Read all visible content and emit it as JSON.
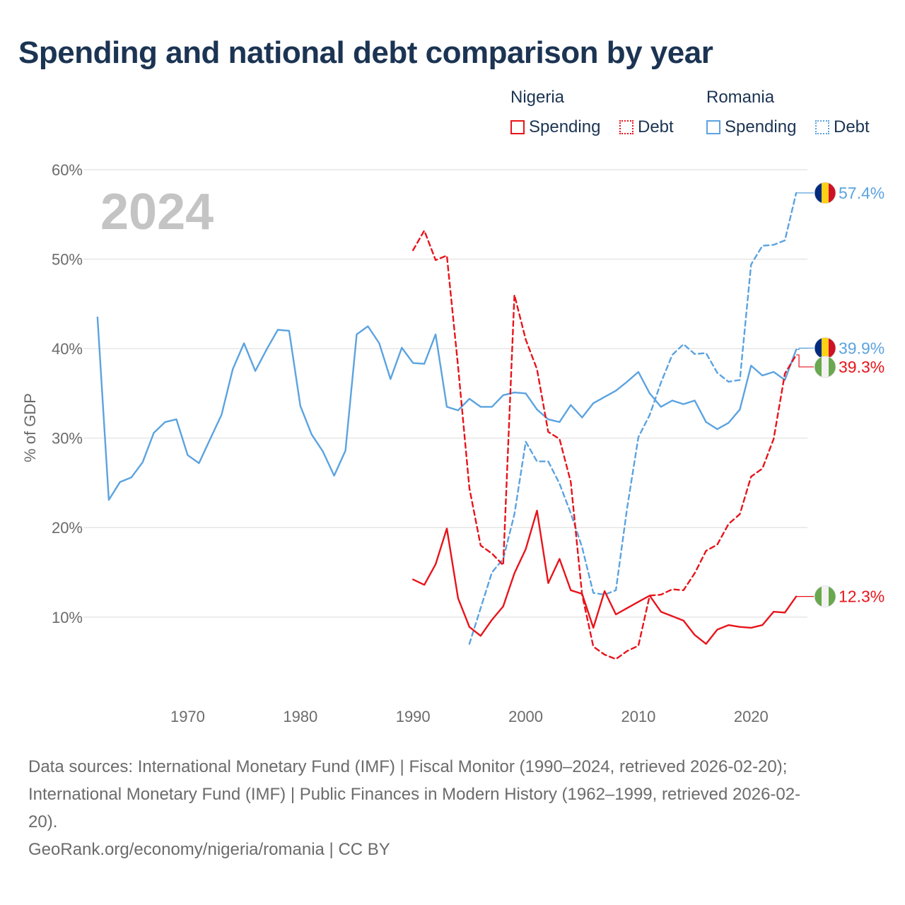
{
  "title": "Spending and national debt comparison by year",
  "legend": {
    "groups": [
      {
        "name": "Nigeria",
        "items": [
          {
            "label": "Spending",
            "style": "solid"
          },
          {
            "label": "Debt",
            "style": "dotted"
          }
        ],
        "color": "#e8141b"
      },
      {
        "name": "Romania",
        "items": [
          {
            "label": "Spending",
            "style": "solid"
          },
          {
            "label": "Debt",
            "style": "dotted"
          }
        ],
        "color": "#5ba3e0"
      }
    ]
  },
  "year_watermark": "2024",
  "colors": {
    "nigeria": "#e8141b",
    "romania": "#5ba3e0",
    "grid": "#e6e6e6",
    "axis_text": "#6b6b6b",
    "title": "#1c3453"
  },
  "chart_data": {
    "type": "line",
    "title": "Spending and national debt comparison by year",
    "xlabel": "",
    "ylabel": "% of GDP",
    "xlim": [
      1961,
      2025
    ],
    "ylim": [
      2,
      60
    ],
    "x_ticks": [
      1970,
      1980,
      1990,
      2000,
      2010,
      2020
    ],
    "y_ticks": [
      10,
      20,
      30,
      40,
      50,
      60
    ],
    "y_tick_labels": [
      "10%",
      "20%",
      "30%",
      "40%",
      "50%",
      "60%"
    ],
    "series": [
      {
        "name": "Romania Spending",
        "country": "romania",
        "dash": "solid",
        "x": [
          1962,
          1963,
          1964,
          1965,
          1966,
          1967,
          1968,
          1969,
          1970,
          1971,
          1972,
          1973,
          1974,
          1975,
          1976,
          1977,
          1978,
          1979,
          1980,
          1981,
          1982,
          1983,
          1984,
          1985,
          1986,
          1987,
          1988,
          1989,
          1990,
          1991,
          1992,
          1993,
          1994,
          1995,
          1996,
          1997,
          1998,
          1999,
          2000,
          2001,
          2002,
          2003,
          2004,
          2005,
          2006,
          2007,
          2008,
          2009,
          2010,
          2011,
          2012,
          2013,
          2014,
          2015,
          2016,
          2017,
          2018,
          2019,
          2020,
          2021,
          2022,
          2023,
          2024
        ],
        "values": [
          43.5,
          23.1,
          25.1,
          25.6,
          27.3,
          30.6,
          31.8,
          32.1,
          28.1,
          27.2,
          29.9,
          32.6,
          37.7,
          40.6,
          37.5,
          39.9,
          42.1,
          42.0,
          33.6,
          30.4,
          28.5,
          25.8,
          28.6,
          41.6,
          42.5,
          40.6,
          36.6,
          40.1,
          38.4,
          38.3,
          41.6,
          33.5,
          33.1,
          34.4,
          33.5,
          33.5,
          34.8,
          35.1,
          35.0,
          33.2,
          32.1,
          31.8,
          33.7,
          32.3,
          33.9,
          34.6,
          35.3,
          36.3,
          37.4,
          35.0,
          33.5,
          34.2,
          33.8,
          34.2,
          31.8,
          31.0,
          31.7,
          33.2,
          38.1,
          37.0,
          37.4,
          36.5,
          39.9
        ]
      },
      {
        "name": "Romania Debt",
        "country": "romania",
        "dash": "dashed",
        "x": [
          1995,
          1996,
          1997,
          1998,
          1999,
          2000,
          2001,
          2002,
          2003,
          2004,
          2005,
          2006,
          2007,
          2008,
          2009,
          2010,
          2011,
          2012,
          2013,
          2014,
          2015,
          2016,
          2017,
          2018,
          2019,
          2020,
          2021,
          2022,
          2023,
          2024
        ],
        "values": [
          7.0,
          11.0,
          15.0,
          16.5,
          21.5,
          29.6,
          27.4,
          27.4,
          24.9,
          21.6,
          17.8,
          12.7,
          12.5,
          13.0,
          22.2,
          30.1,
          32.6,
          36.2,
          39.3,
          40.5,
          39.4,
          39.5,
          37.3,
          36.3,
          36.5,
          49.4,
          51.5,
          51.6,
          52.1,
          57.4
        ]
      },
      {
        "name": "Nigeria Spending",
        "country": "nigeria",
        "dash": "solid",
        "x": [
          1990,
          1991,
          1992,
          1993,
          1994,
          1995,
          1996,
          1997,
          1998,
          1999,
          2000,
          2001,
          2002,
          2003,
          2004,
          2005,
          2006,
          2007,
          2008,
          2009,
          2010,
          2011,
          2012,
          2013,
          2014,
          2015,
          2016,
          2017,
          2018,
          2019,
          2020,
          2021,
          2022,
          2023,
          2024
        ],
        "values": [
          14.2,
          13.6,
          15.9,
          19.9,
          12.1,
          8.9,
          7.9,
          9.7,
          11.2,
          14.9,
          17.6,
          21.9,
          13.8,
          16.5,
          13.0,
          12.6,
          8.8,
          12.9,
          10.3,
          11.0,
          11.7,
          12.4,
          10.6,
          10.1,
          9.6,
          8.0,
          7.0,
          8.6,
          9.1,
          8.9,
          8.8,
          9.1,
          10.6,
          10.5,
          12.3
        ]
      },
      {
        "name": "Nigeria Debt",
        "country": "nigeria",
        "dash": "dashed",
        "x": [
          1990,
          1991,
          1992,
          1993,
          1994,
          1995,
          1996,
          1997,
          1998,
          1999,
          2000,
          2001,
          2002,
          2003,
          2004,
          2005,
          2006,
          2007,
          2008,
          2009,
          2010,
          2011,
          2012,
          2013,
          2014,
          2015,
          2016,
          2017,
          2018,
          2019,
          2020,
          2021,
          2022,
          2023,
          2024
        ],
        "values": [
          51.0,
          53.2,
          49.9,
          50.4,
          38.0,
          24.4,
          18.0,
          17.1,
          15.8,
          46.0,
          41.0,
          37.7,
          30.7,
          29.9,
          25.1,
          12.5,
          6.7,
          5.8,
          5.3,
          6.2,
          6.8,
          12.4,
          12.5,
          13.1,
          13.0,
          14.9,
          17.4,
          18.1,
          20.4,
          21.5,
          25.7,
          26.6,
          29.9,
          37.2,
          39.3
        ]
      }
    ],
    "end_labels": [
      {
        "country": "romania",
        "label": "57.4%",
        "value": 57.4
      },
      {
        "country": "romania",
        "label": "39.9%",
        "value": 39.9
      },
      {
        "country": "nigeria",
        "label": "39.3%",
        "value": 39.3
      },
      {
        "country": "nigeria",
        "label": "12.3%",
        "value": 12.3
      }
    ]
  },
  "source": {
    "line1": "Data sources: International Monetary Fund (IMF) | Fiscal Monitor (1990–2024, retrieved 2026-02-20);",
    "line2": "International Monetary Fund (IMF) | Public Finances in Modern History (1962–1999, retrieved 2026-02-",
    "line3": "20).",
    "line4": "GeoRank.org/economy/nigeria/romania | CC BY"
  }
}
